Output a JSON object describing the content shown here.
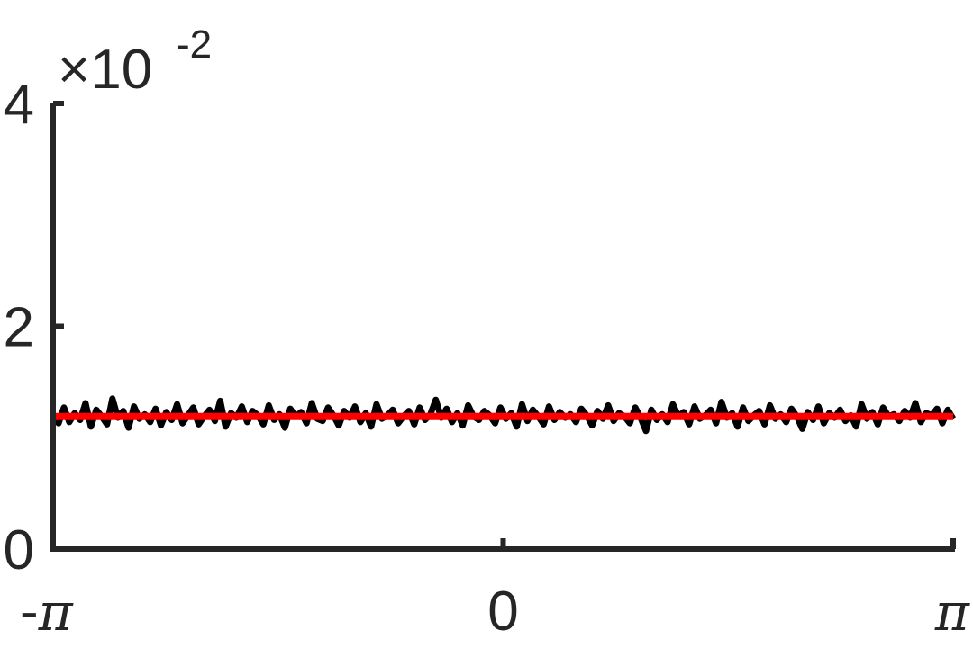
{
  "chart_data": {
    "type": "line",
    "title": "",
    "xlabel": "",
    "ylabel": "",
    "y_exponent_label": {
      "base": "×10",
      "power": "-2"
    },
    "xlim": [
      -3.14159,
      3.14159
    ],
    "ylim": [
      0,
      4
    ],
    "x_ticks": [
      {
        "value": -3.14159,
        "minus": "-",
        "symbol": "π"
      },
      {
        "value": 0,
        "minus": "",
        "symbol": "0"
      },
      {
        "value": 3.14159,
        "minus": "",
        "symbol": "π"
      }
    ],
    "y_ticks": [
      {
        "value": 0,
        "label": "0"
      },
      {
        "value": 2,
        "label": "2"
      },
      {
        "value": 4,
        "label": "4"
      }
    ],
    "grid": false,
    "legend": false,
    "series": [
      {
        "color": "#000000",
        "style": "noisy",
        "x_range": [
          -3.14159,
          3.14159
        ],
        "values": [
          1.2,
          1.13,
          1.27,
          1.14,
          1.22,
          1.16,
          1.31,
          1.1,
          1.25,
          1.19,
          1.12,
          1.35,
          1.18,
          1.24,
          1.09,
          1.28,
          1.17,
          1.21,
          1.14,
          1.26,
          1.11,
          1.23,
          1.16,
          1.3,
          1.13,
          1.2,
          1.27,
          1.12,
          1.19,
          1.25,
          1.15,
          1.33,
          1.1,
          1.22,
          1.18,
          1.28,
          1.14,
          1.24,
          1.2,
          1.12,
          1.29,
          1.16,
          1.21,
          1.09,
          1.26,
          1.19,
          1.23,
          1.13,
          1.31,
          1.17,
          1.15,
          1.27,
          1.2,
          1.11,
          1.24,
          1.18,
          1.28,
          1.14,
          1.22,
          1.1,
          1.3,
          1.17,
          1.2,
          1.25,
          1.13,
          1.19,
          1.24,
          1.12,
          1.27,
          1.16,
          1.21,
          1.34,
          1.18,
          1.26,
          1.14,
          1.22,
          1.11,
          1.29,
          1.19,
          1.16,
          1.24,
          1.2,
          1.13,
          1.27,
          1.17,
          1.22,
          1.1,
          1.3,
          1.15,
          1.25,
          1.19,
          1.12,
          1.28,
          1.16,
          1.23,
          1.18,
          1.21,
          1.14,
          1.26,
          1.2,
          1.11,
          1.24,
          1.17,
          1.29,
          1.15,
          1.22,
          1.19,
          1.13,
          1.27,
          1.18,
          1.06,
          1.25,
          1.16,
          1.21,
          1.14,
          1.3,
          1.19,
          1.23,
          1.12,
          1.28,
          1.17,
          1.2,
          1.25,
          1.13,
          1.32,
          1.18,
          1.22,
          1.1,
          1.27,
          1.15,
          1.2,
          1.24,
          1.12,
          1.29,
          1.17,
          1.21,
          1.14,
          1.26,
          1.19,
          1.08,
          1.23,
          1.16,
          1.28,
          1.13,
          1.22,
          1.18,
          1.25,
          1.15,
          1.2,
          1.1,
          1.3,
          1.17,
          1.23,
          1.12,
          1.27,
          1.19,
          1.21,
          1.15,
          1.24,
          1.18,
          1.31,
          1.14,
          1.22,
          1.2,
          1.26,
          1.13,
          1.25,
          1.17
        ]
      },
      {
        "color": "#ff0000",
        "style": "solid",
        "x": [
          -3.14159,
          3.14159
        ],
        "values": [
          1.19,
          1.19
        ]
      }
    ]
  }
}
